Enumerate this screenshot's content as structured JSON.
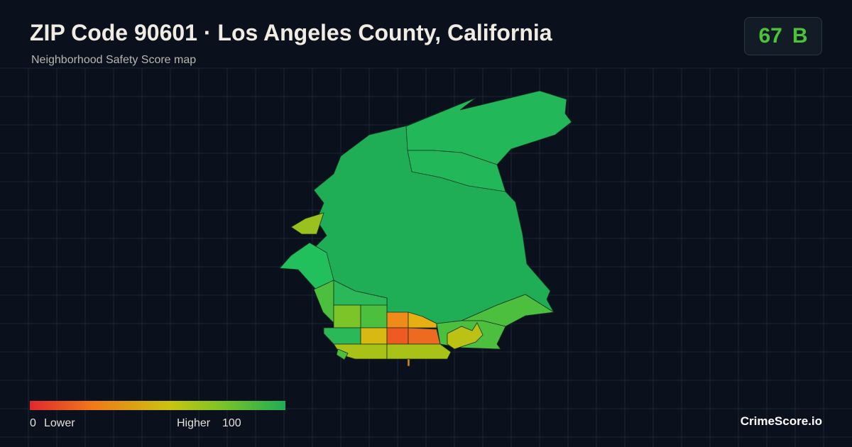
{
  "header": {
    "title": "ZIP Code 90601 · Los Angeles County, California",
    "subtitle": "Neighborhood Safety Score map"
  },
  "score": {
    "value": "67",
    "grade": "B"
  },
  "legend": {
    "min": "0",
    "min_label": "Lower",
    "max_label": "Higher",
    "max": "100"
  },
  "brand": "CrimeScore.io"
}
